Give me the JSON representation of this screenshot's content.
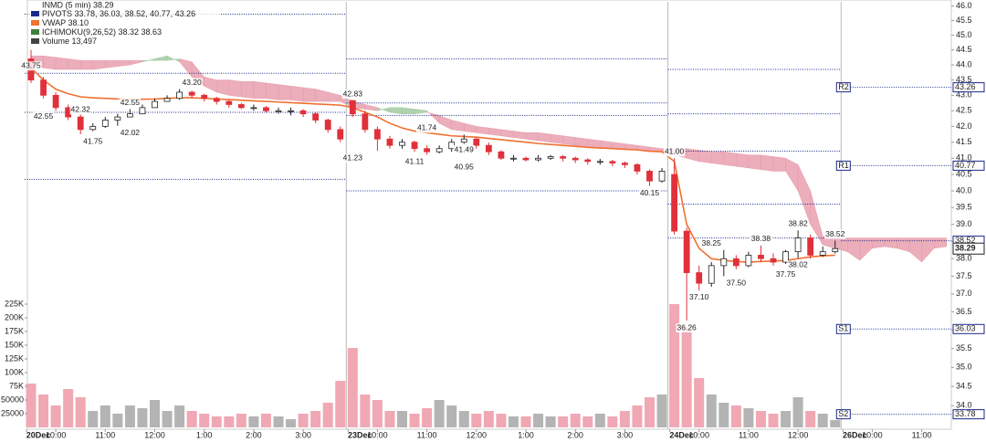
{
  "chart_data": {
    "type": "candlestick",
    "title": "INMD (5 min) 38.29",
    "log_scale": true,
    "legend": [
      {
        "text": "PIVOTS 33.78, 36.03, 38.52, 40.77, 43.26",
        "color": "#1a2a8a"
      },
      {
        "text": "VWAP 38.10",
        "color": "#f07030"
      },
      {
        "text": "ICHIMOKU(9,26,52) 38.32 38.63",
        "color": "#3f7f3f"
      },
      {
        "text": "Volume 13,497",
        "color": "#444444"
      }
    ],
    "categories": [
      "20Dec",
      null,
      "10:00",
      null,
      null,
      null,
      "11:00",
      null,
      null,
      null,
      "12:00",
      null,
      null,
      null,
      "1:00",
      null,
      null,
      null,
      "2:00",
      null,
      null,
      null,
      "3:00",
      null,
      null,
      null,
      "23Dec",
      null,
      "10:00",
      null,
      null,
      null,
      "11:00",
      null,
      null,
      null,
      "12:00",
      null,
      null,
      null,
      "1:00",
      null,
      null,
      null,
      "2:00",
      null,
      null,
      null,
      "3:00",
      null,
      null,
      null,
      "24Dec",
      null,
      "10:00",
      null,
      null,
      null,
      "11:00",
      null,
      null,
      null,
      "12:00",
      null,
      null,
      null,
      "26Dec",
      null,
      "10:00",
      null,
      null,
      null,
      "11:00",
      null,
      null
    ],
    "open": [
      44.2,
      43.5,
      43.0,
      42.6,
      42.3,
      41.9,
      42.0,
      42.2,
      42.3,
      42.4,
      42.6,
      42.8,
      42.9,
      43.1,
      43.0,
      42.9,
      42.8,
      42.7,
      42.6,
      42.6,
      42.5,
      42.5,
      42.5,
      42.4,
      42.2,
      41.9,
      42.83,
      42.4,
      41.9,
      41.6,
      41.4,
      41.5,
      41.3,
      41.2,
      41.3,
      41.5,
      41.6,
      41.4,
      41.2,
      41.0,
      41.0,
      40.95,
      41.0,
      41.05,
      41.0,
      40.95,
      40.9,
      40.9,
      40.85,
      40.8,
      40.6,
      40.3,
      40.5,
      38.8,
      37.6,
      37.3,
      37.8,
      38.0,
      37.8,
      38.1,
      38.0,
      37.9,
      38.2,
      38.6,
      38.1,
      38.2,
      null,
      null,
      null,
      null,
      null,
      null,
      null,
      null,
      null
    ],
    "high": [
      44.5,
      43.6,
      43.1,
      42.7,
      42.4,
      42.1,
      42.3,
      42.4,
      42.55,
      42.7,
      42.9,
      43.0,
      43.2,
      43.15,
      43.05,
      42.95,
      42.85,
      42.75,
      42.7,
      42.65,
      42.6,
      42.6,
      42.55,
      42.45,
      42.25,
      42.0,
      42.83,
      42.5,
      42.0,
      41.7,
      41.6,
      41.55,
      41.4,
      41.4,
      41.6,
      41.74,
      41.65,
      41.49,
      41.25,
      41.1,
      41.05,
      41.1,
      41.1,
      41.1,
      41.05,
      41.0,
      40.98,
      40.95,
      40.9,
      40.85,
      40.65,
      40.7,
      41.0,
      38.9,
      37.8,
      37.9,
      38.25,
      38.1,
      38.2,
      38.38,
      38.15,
      38.25,
      38.82,
      38.7,
      38.35,
      38.52,
      null,
      null,
      null,
      null,
      null,
      null,
      null,
      null,
      null
    ],
    "low": [
      43.4,
      42.9,
      42.5,
      42.2,
      41.75,
      41.85,
      41.95,
      42.02,
      42.3,
      42.5,
      42.7,
      42.85,
      42.85,
      42.9,
      42.8,
      42.7,
      42.6,
      42.55,
      42.5,
      42.45,
      42.4,
      42.35,
      42.3,
      42.1,
      41.8,
      41.5,
      42.3,
      41.8,
      41.23,
      41.3,
      41.3,
      41.2,
      41.11,
      41.15,
      41.2,
      41.45,
      41.3,
      41.1,
      40.95,
      40.9,
      40.9,
      40.9,
      40.95,
      40.9,
      40.85,
      40.8,
      40.8,
      40.75,
      40.7,
      40.5,
      40.15,
      40.25,
      38.7,
      36.26,
      37.1,
      37.2,
      37.5,
      37.7,
      37.75,
      37.9,
      37.8,
      37.85,
      38.02,
      38.0,
      38.05,
      38.15,
      null,
      null,
      null,
      null,
      null,
      null,
      null,
      null,
      null
    ],
    "close": [
      43.5,
      43.0,
      42.6,
      42.3,
      41.9,
      42.0,
      42.2,
      42.3,
      42.4,
      42.6,
      42.8,
      42.9,
      43.1,
      43.0,
      42.9,
      42.8,
      42.7,
      42.6,
      42.6,
      42.5,
      42.5,
      42.5,
      42.4,
      42.2,
      41.9,
      41.6,
      42.4,
      41.9,
      41.6,
      41.4,
      41.5,
      41.3,
      41.2,
      41.3,
      41.5,
      41.6,
      41.4,
      41.2,
      41.0,
      41.0,
      40.95,
      41.0,
      41.05,
      41.0,
      40.95,
      40.9,
      40.9,
      40.85,
      40.8,
      40.6,
      40.3,
      40.6,
      38.8,
      37.6,
      37.3,
      37.8,
      38.0,
      37.8,
      38.1,
      38.0,
      37.9,
      38.2,
      38.6,
      38.1,
      38.2,
      38.29,
      null,
      null,
      null,
      null,
      null,
      null,
      null,
      null,
      null
    ],
    "up_color": "#ffffff",
    "down_color": "#e0303a",
    "vwap": {
      "color": "#f07030",
      "values": [
        43.9,
        43.5,
        43.2,
        43.05,
        42.95,
        42.92,
        42.9,
        42.88,
        42.87,
        42.87,
        42.88,
        42.9,
        42.92,
        42.92,
        42.9,
        42.88,
        42.86,
        42.84,
        42.82,
        42.8,
        42.78,
        42.76,
        42.74,
        42.72,
        42.7,
        42.68,
        42.6,
        42.45,
        42.3,
        42.1,
        41.95,
        41.85,
        41.8,
        41.75,
        41.7,
        41.68,
        41.66,
        41.62,
        41.58,
        41.54,
        41.5,
        41.46,
        41.43,
        41.4,
        41.37,
        41.34,
        41.32,
        41.3,
        41.28,
        41.26,
        41.22,
        41.2,
        40.9,
        39.0,
        38.3,
        38.0,
        37.95,
        37.92,
        37.9,
        37.92,
        37.93,
        37.95,
        38.0,
        38.05,
        38.08,
        38.1,
        null,
        null,
        null,
        null,
        null,
        null,
        null,
        null,
        null
      ]
    },
    "ichimoku": {
      "bull_color": "#9ec79e",
      "bear_color": "#e79aaa",
      "span_a": [
        44.0,
        43.9,
        43.85,
        43.85,
        43.85,
        43.85,
        43.9,
        43.95,
        44.0,
        44.1,
        44.2,
        44.3,
        44.1,
        43.6,
        43.3,
        43.1,
        43.0,
        42.95,
        42.9,
        42.9,
        42.85,
        42.85,
        42.8,
        42.8,
        42.8,
        42.8,
        42.6,
        42.55,
        42.5,
        42.6,
        42.6,
        42.55,
        42.5,
        42.1,
        41.9,
        41.85,
        41.8,
        41.75,
        41.7,
        41.65,
        41.6,
        41.55,
        41.5,
        41.45,
        41.4,
        41.35,
        41.3,
        41.3,
        41.3,
        41.25,
        41.2,
        41.2,
        41.1,
        41.0,
        40.9,
        40.85,
        40.8,
        40.75,
        40.7,
        40.65,
        40.6,
        40.6,
        40.0,
        39.0,
        38.4,
        38.3,
        38.2,
        37.95,
        38.3,
        38.35,
        38.3,
        38.2,
        37.9,
        38.3,
        38.35
      ],
      "span_b": [
        44.3,
        44.3,
        44.25,
        44.2,
        44.15,
        44.15,
        44.15,
        44.15,
        44.15,
        44.15,
        44.15,
        44.15,
        44.2,
        44.1,
        43.6,
        43.5,
        43.5,
        43.45,
        43.45,
        43.4,
        43.35,
        43.3,
        43.25,
        43.2,
        43.1,
        43.0,
        42.8,
        42.7,
        42.6,
        42.45,
        42.4,
        42.4,
        42.45,
        42.35,
        42.2,
        42.1,
        42.0,
        41.95,
        41.9,
        41.85,
        41.8,
        41.8,
        41.75,
        41.7,
        41.65,
        41.6,
        41.55,
        41.5,
        41.45,
        41.4,
        41.35,
        41.3,
        41.3,
        41.3,
        41.25,
        41.2,
        41.2,
        41.15,
        41.1,
        41.1,
        41.05,
        41.0,
        40.8,
        40.0,
        38.65,
        38.6,
        38.6,
        38.6,
        38.6,
        38.6,
        38.6,
        38.6,
        38.6,
        38.6,
        38.6
      ]
    },
    "pivots": {
      "color": "#1a2a8a",
      "sessions": [
        {
          "start": 0,
          "levels": [
            45.72,
            43.72,
            42.45,
            40.35
          ]
        },
        {
          "start": 26,
          "levels": [
            44.2,
            42.75,
            42.35,
            40.0
          ]
        },
        {
          "start": 52,
          "levels": [
            43.85,
            42.4,
            41.22,
            39.6,
            38.6
          ]
        },
        {
          "start": 66,
          "levels": [
            43.26,
            40.77,
            38.52,
            36.03,
            33.78
          ],
          "labels": [
            "R2",
            "R1",
            null,
            "S1",
            "S2"
          ]
        }
      ]
    },
    "annotations": [
      {
        "x": 0,
        "value": 43.75
      },
      {
        "x": 1,
        "value": 42.55
      },
      {
        "x": 4,
        "value": 42.32
      },
      {
        "x": 5,
        "value": 41.75
      },
      {
        "x": 8,
        "value": 42.55
      },
      {
        "x": 8,
        "value": 42.02
      },
      {
        "x": 13,
        "value": 43.2,
        "label": "43.20"
      },
      {
        "x": 26,
        "value": 42.83
      },
      {
        "x": 26,
        "value": 41.23
      },
      {
        "x": 32,
        "value": 41.74
      },
      {
        "x": 31,
        "value": 41.11
      },
      {
        "x": 35,
        "value": 41.49
      },
      {
        "x": 35,
        "value": 40.95
      },
      {
        "x": 52,
        "value": 41.0,
        "label": "41.00"
      },
      {
        "x": 50,
        "value": 40.15
      },
      {
        "x": 53,
        "value": 36.26
      },
      {
        "x": 54,
        "value": 37.1,
        "label": "37.10"
      },
      {
        "x": 55,
        "value": 38.25
      },
      {
        "x": 57,
        "value": 37.5,
        "label": "37.50"
      },
      {
        "x": 59,
        "value": 38.38
      },
      {
        "x": 61,
        "value": 37.75
      },
      {
        "x": 62,
        "value": 38.82
      },
      {
        "x": 62,
        "value": 38.02
      },
      {
        "x": 65,
        "value": 38.52
      }
    ],
    "ylim": [
      33.4,
      46.15
    ],
    "yticks": [
      {
        "value": 34,
        "label": "34.0"
      },
      34.5,
      {
        "value": 35,
        "label": "35.0"
      },
      35.5,
      {
        "value": 36,
        "label": "36.0"
      },
      36.5,
      {
        "value": 37,
        "label": "37.0"
      },
      37.5,
      {
        "value": 38,
        "label": "38.0"
      },
      38.5,
      {
        "value": 39,
        "label": "39.0"
      },
      39.5,
      {
        "value": 40,
        "label": "40.0"
      },
      40.5,
      {
        "value": 41,
        "label": "41.0"
      },
      41.5,
      {
        "value": 42,
        "label": "42.0"
      },
      42.5,
      {
        "value": 43,
        "label": "43.0"
      },
      43.5,
      {
        "value": 44,
        "label": "44.0"
      },
      44.5,
      {
        "value": 45,
        "label": "45.0"
      },
      45.5,
      {
        "value": 46,
        "label": "46.0"
      }
    ],
    "volume": {
      "up_color": "#b4b4b4",
      "down_color": "#f0a8b4",
      "ylim": [
        0,
        240000
      ],
      "yticks": [
        25000,
        50000,
        {
          "value": 75000,
          "label": "75K"
        },
        {
          "value": 100000,
          "label": "100K"
        },
        {
          "value": 125000,
          "label": "125K"
        },
        {
          "value": 150000,
          "label": "150K"
        },
        {
          "value": 175000,
          "label": "175K"
        },
        {
          "value": 200000,
          "label": "200K"
        },
        {
          "value": 225000,
          "label": "225K"
        }
      ],
      "values": [
        80000,
        60000,
        40000,
        70000,
        55000,
        30000,
        40000,
        25000,
        40000,
        35000,
        50000,
        30000,
        40000,
        30000,
        25000,
        20000,
        20000,
        25000,
        20000,
        25000,
        20000,
        15000,
        25000,
        30000,
        45000,
        85000,
        145000,
        60000,
        50000,
        30000,
        30000,
        25000,
        35000,
        50000,
        40000,
        30000,
        25000,
        30000,
        25000,
        20000,
        20000,
        25000,
        20000,
        20000,
        25000,
        20000,
        25000,
        20000,
        30000,
        40000,
        55000,
        60000,
        225000,
        185000,
        90000,
        60000,
        45000,
        40000,
        35000,
        30000,
        25000,
        30000,
        55000,
        30000,
        25000,
        13497,
        null,
        null,
        null,
        null,
        null,
        null,
        null,
        null,
        null
      ]
    }
  }
}
